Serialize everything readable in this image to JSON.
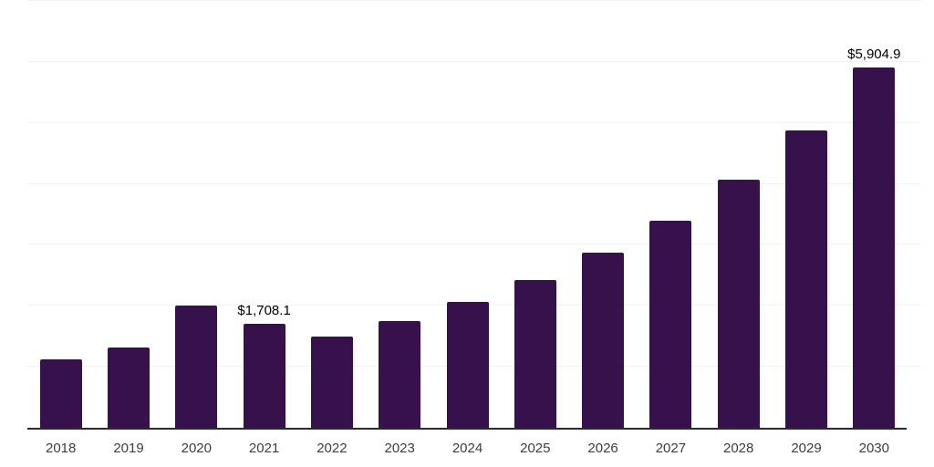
{
  "chart_data": {
    "type": "bar",
    "title": "",
    "xlabel": "",
    "ylabel": "",
    "categories": [
      "2018",
      "2019",
      "2020",
      "2021",
      "2022",
      "2023",
      "2024",
      "2025",
      "2026",
      "2027",
      "2028",
      "2029",
      "2030"
    ],
    "values": [
      1120,
      1310,
      2010,
      1708.1,
      1495,
      1755,
      2060,
      2420,
      2865,
      3400,
      4075,
      4880,
      5904.9
    ],
    "data_labels": [
      "",
      "",
      "",
      "$1,708.1",
      "",
      "",
      "",
      "",
      "",
      "",
      "",
      "",
      "$5,904.9"
    ],
    "ylim": [
      0,
      7000
    ],
    "gridline_interval": 1000,
    "grid": "horizontal",
    "legend": "none",
    "colors": {
      "bar": "#36114B",
      "gridline": "#F2F2F2",
      "axis_line": "#2B2B2B",
      "tick_label": "#3D3D3D",
      "data_label": "#000000",
      "background": "#FFFFFF"
    }
  }
}
